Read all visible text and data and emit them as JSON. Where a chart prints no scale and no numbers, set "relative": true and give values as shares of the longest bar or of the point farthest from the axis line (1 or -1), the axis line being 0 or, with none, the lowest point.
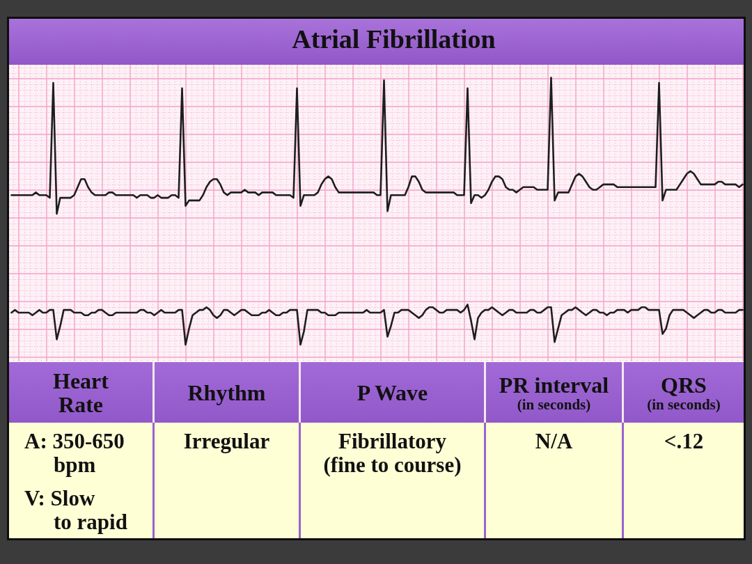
{
  "chart_data": [
    {
      "type": "line",
      "title": "Atrial Fibrillation",
      "relative": true,
      "grid": true,
      "marker": "none",
      "line_style": "solid",
      "categories": [
        null,
        null,
        null,
        null,
        null,
        null,
        null,
        null,
        null,
        null,
        null,
        null,
        null,
        null,
        null,
        null,
        null,
        null,
        null,
        null,
        null,
        null,
        null,
        null,
        null,
        null,
        null,
        null,
        null,
        null,
        null,
        null,
        null,
        null,
        null,
        null,
        null,
        null,
        null,
        null,
        null,
        null,
        null,
        null,
        null,
        null,
        null,
        null,
        null,
        null,
        null,
        null,
        null,
        null,
        null,
        null,
        null,
        null,
        null,
        null,
        null,
        null,
        null,
        null,
        null,
        null,
        null,
        null,
        null,
        null,
        null,
        null,
        null,
        null,
        null,
        null,
        null,
        null,
        null,
        null,
        null,
        null,
        null,
        null,
        null,
        null,
        null,
        null,
        null,
        null,
        null,
        null,
        null,
        null,
        null,
        null,
        null,
        null,
        null,
        null,
        null,
        null,
        null,
        null,
        null,
        null,
        null,
        null,
        null,
        null,
        null,
        null,
        null,
        null,
        null,
        null,
        null,
        null,
        null,
        null,
        null,
        null,
        null,
        null,
        null,
        null,
        null,
        null,
        null,
        null,
        null,
        null,
        null,
        null,
        null,
        null,
        null,
        null,
        null,
        null,
        null,
        null,
        null,
        null,
        null,
        null,
        null,
        null,
        null,
        null,
        null,
        null,
        null,
        null,
        null,
        null,
        null,
        null,
        null,
        null,
        null,
        null,
        null,
        null,
        null,
        null,
        null,
        null,
        null,
        null,
        null,
        null,
        null,
        null,
        null,
        null,
        null,
        null,
        null,
        null,
        null,
        null,
        null,
        null,
        null,
        null,
        null,
        null,
        null,
        null,
        null,
        null,
        null,
        null,
        null,
        null,
        null,
        null,
        null,
        null,
        null,
        null,
        null,
        null,
        null,
        null,
        null,
        null,
        null,
        null,
        null
      ],
      "series": [
        {
          "color": "#1e1e1e",
          "values": [
            0.56,
            0.56,
            0.56,
            0.56,
            0.56,
            0.56,
            0.56,
            0.57,
            0.56,
            0.56,
            0.56,
            0.55,
            0.98,
            0.49,
            0.55,
            0.55,
            0.55,
            0.55,
            0.56,
            0.59,
            0.62,
            0.62,
            0.59,
            0.57,
            0.56,
            0.56,
            0.56,
            0.56,
            0.57,
            0.57,
            0.56,
            0.56,
            0.56,
            0.56,
            0.56,
            0.56,
            0.55,
            0.56,
            0.56,
            0.56,
            0.55,
            0.55,
            0.56,
            0.55,
            0.55,
            0.55,
            0.56,
            0.56,
            0.55,
            0.96,
            0.52,
            0.54,
            0.54,
            0.54,
            0.54,
            0.56,
            0.59,
            0.61,
            0.62,
            0.62,
            0.6,
            0.57,
            0.56,
            0.57,
            0.57,
            0.57,
            0.57,
            0.58,
            0.57,
            0.57,
            0.57,
            0.56,
            0.57,
            0.57,
            0.57,
            0.57,
            0.56,
            0.56,
            0.56,
            0.56,
            0.56,
            0.55,
            0.96,
            0.52,
            0.56,
            0.56,
            0.56,
            0.56,
            0.57,
            0.6,
            0.62,
            0.63,
            0.62,
            0.59,
            0.57,
            0.57,
            0.57,
            0.57,
            0.57,
            0.57,
            0.57,
            0.57,
            0.57,
            0.57,
            0.57,
            0.56,
            0.56,
            0.99,
            0.5,
            0.56,
            0.56,
            0.56,
            0.56,
            0.56,
            0.59,
            0.63,
            0.63,
            0.61,
            0.58,
            0.57,
            0.57,
            0.57,
            0.57,
            0.57,
            0.57,
            0.57,
            0.57,
            0.57,
            0.56,
            0.56,
            0.56,
            0.96,
            0.53,
            0.56,
            0.56,
            0.55,
            0.56,
            0.58,
            0.61,
            0.63,
            0.63,
            0.62,
            0.59,
            0.58,
            0.58,
            0.57,
            0.58,
            0.59,
            0.59,
            0.59,
            0.59,
            0.58,
            0.58,
            0.58,
            0.58,
            1.0,
            0.54,
            0.57,
            0.57,
            0.57,
            0.57,
            0.6,
            0.63,
            0.64,
            0.63,
            0.61,
            0.59,
            0.58,
            0.58,
            0.59,
            0.6,
            0.6,
            0.6,
            0.6,
            0.59,
            0.59,
            0.59,
            0.59,
            0.59,
            0.59,
            0.59,
            0.59,
            0.59,
            0.59,
            0.59,
            0.59,
            0.98,
            0.54,
            0.58,
            0.58,
            0.58,
            0.58,
            0.6,
            0.62,
            0.64,
            0.65,
            0.64,
            0.62,
            0.6,
            0.6,
            0.6,
            0.6,
            0.6,
            0.61,
            0.61,
            0.6,
            0.6,
            0.6,
            0.6,
            0.59,
            0.6
          ]
        },
        {
          "color": "#1e1e1e",
          "values": [
            0.12,
            0.13,
            0.12,
            0.12,
            0.12,
            0.12,
            0.11,
            0.12,
            0.13,
            0.12,
            0.12,
            0.13,
            0.13,
            0.02,
            0.07,
            0.13,
            0.13,
            0.13,
            0.12,
            0.12,
            0.12,
            0.11,
            0.11,
            0.12,
            0.12,
            0.13,
            0.13,
            0.12,
            0.11,
            0.11,
            0.12,
            0.12,
            0.12,
            0.12,
            0.12,
            0.12,
            0.12,
            0.13,
            0.13,
            0.12,
            0.12,
            0.11,
            0.12,
            0.13,
            0.12,
            0.12,
            0.12,
            0.12,
            0.13,
            0.13,
            0.0,
            0.06,
            0.11,
            0.12,
            0.13,
            0.13,
            0.14,
            0.13,
            0.11,
            0.1,
            0.11,
            0.13,
            0.13,
            0.12,
            0.11,
            0.12,
            0.13,
            0.13,
            0.12,
            0.11,
            0.11,
            0.11,
            0.12,
            0.12,
            0.13,
            0.12,
            0.11,
            0.11,
            0.12,
            0.12,
            0.13,
            0.13,
            0.13,
            0.0,
            0.05,
            0.13,
            0.13,
            0.13,
            0.13,
            0.12,
            0.12,
            0.11,
            0.11,
            0.11,
            0.12,
            0.12,
            0.12,
            0.12,
            0.12,
            0.12,
            0.12,
            0.12,
            0.13,
            0.12,
            0.12,
            0.12,
            0.12,
            0.13,
            0.03,
            0.07,
            0.12,
            0.12,
            0.13,
            0.13,
            0.13,
            0.12,
            0.11,
            0.1,
            0.11,
            0.13,
            0.14,
            0.14,
            0.13,
            0.12,
            0.12,
            0.13,
            0.13,
            0.13,
            0.13,
            0.12,
            0.13,
            0.15,
            0.09,
            0.02,
            0.1,
            0.12,
            0.13,
            0.13,
            0.14,
            0.13,
            0.12,
            0.11,
            0.12,
            0.13,
            0.13,
            0.12,
            0.12,
            0.12,
            0.12,
            0.13,
            0.13,
            0.12,
            0.12,
            0.13,
            0.14,
            0.14,
            0.01,
            0.06,
            0.11,
            0.12,
            0.13,
            0.13,
            0.14,
            0.13,
            0.12,
            0.11,
            0.12,
            0.13,
            0.13,
            0.12,
            0.12,
            0.11,
            0.12,
            0.12,
            0.13,
            0.13,
            0.13,
            0.12,
            0.13,
            0.13,
            0.13,
            0.14,
            0.14,
            0.13,
            0.13,
            0.13,
            0.13,
            0.04,
            0.06,
            0.11,
            0.13,
            0.13,
            0.13,
            0.13,
            0.12,
            0.11,
            0.1,
            0.11,
            0.12,
            0.13,
            0.13,
            0.12,
            0.12,
            0.13,
            0.13,
            0.12,
            0.12,
            0.12,
            0.12,
            0.13,
            0.13
          ]
        }
      ]
    },
    {
      "type": "other",
      "categories": [
        "Heart\nRate",
        "Rhythm",
        "P Wave",
        "PR interval\n(in seconds)",
        "QRS\n(in seconds)"
      ],
      "annotations": [
        "A: 350-650\nbpm\n\nV: Slow\nto rapid",
        "Irregular",
        "Fibrillatory\n(fine to course)",
        "N/A",
        "<.12"
      ]
    }
  ]
}
